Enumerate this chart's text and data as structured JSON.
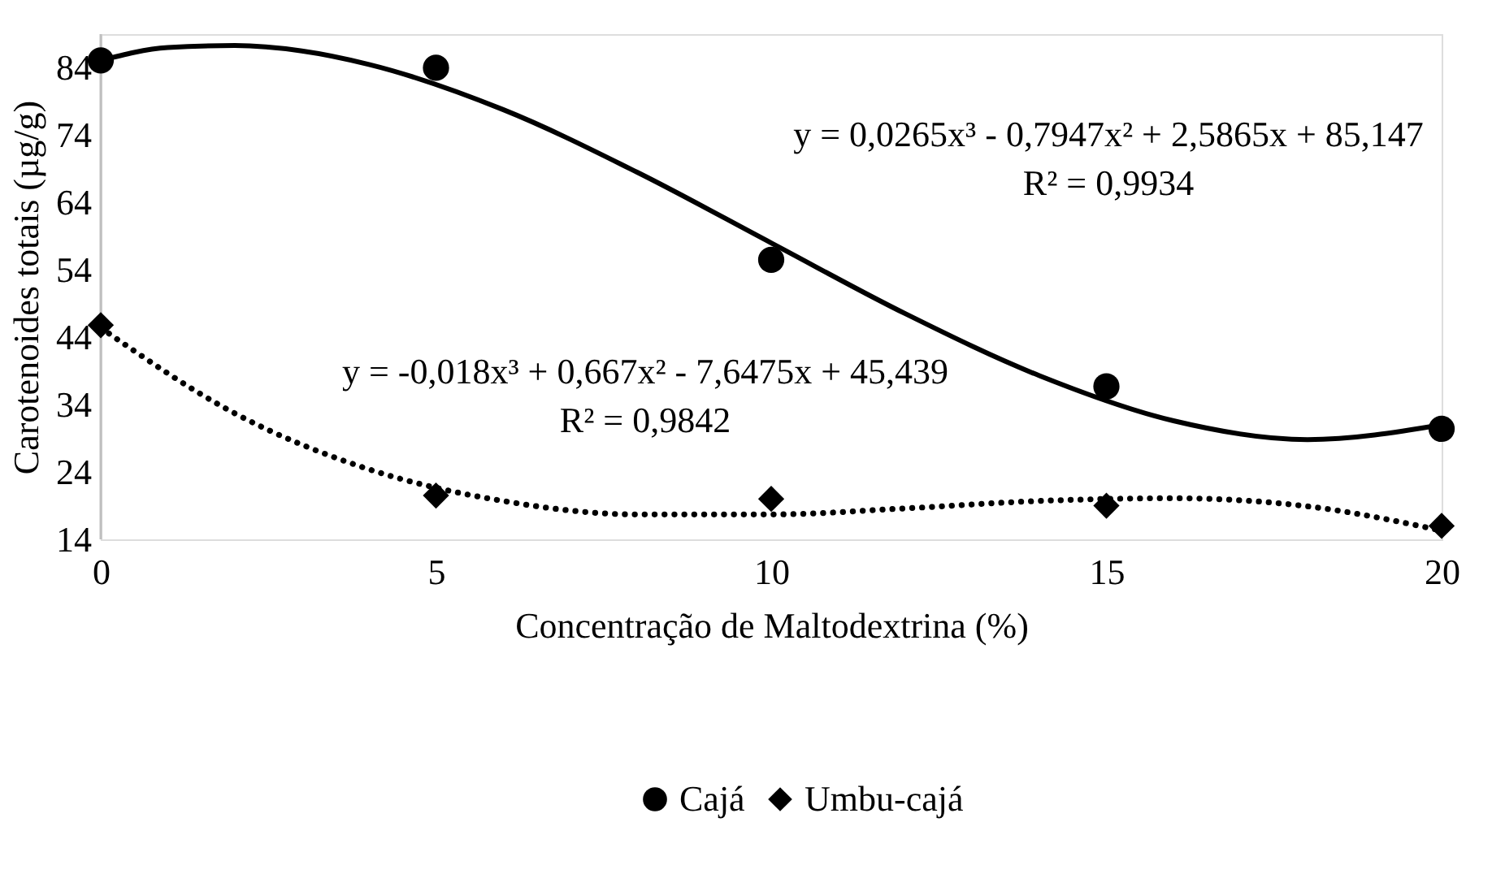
{
  "chart_data": {
    "type": "scatter",
    "xlabel": "Concentração de Maltodextrina (%)",
    "ylabel": "Carotenoides totais (µg/g)",
    "x": [
      0,
      5,
      10,
      15,
      20
    ],
    "series": [
      {
        "name": "Cajá",
        "color": "#000000",
        "marker": "circle",
        "values": [
          85.1,
          84,
          55.5,
          36.7,
          30.4
        ]
      },
      {
        "name": "Umbu-cajá",
        "color": "#000000",
        "marker": "diamond",
        "values": [
          45.8,
          20.5,
          20,
          19,
          16
        ]
      },
      {
        "type": "line",
        "color": "#000000",
        "line_style": "solid",
        "marker": "none",
        "x": [
          0,
          1,
          2,
          3,
          4,
          6,
          8,
          10,
          12,
          14,
          16,
          18,
          20
        ],
        "values": [
          85.1,
          87.0,
          87.3,
          86.5,
          84.5,
          77.8,
          68.5,
          58.0,
          47.5,
          38.3,
          31.6,
          28.8,
          31.0
        ]
      },
      {
        "type": "line",
        "color": "#000000",
        "line_style": "dotted",
        "marker": "none",
        "x": [
          0,
          2,
          4,
          6,
          8,
          10,
          12,
          14,
          16,
          18,
          20
        ],
        "values": [
          45.4,
          32.7,
          24.4,
          19.7,
          17.7,
          17.7,
          18.6,
          19.7,
          20.1,
          18.9,
          15.3
        ]
      }
    ],
    "annotations": [
      "y = 0,0265x³ - 0,7947x² + 2,5865x + 85,147",
      "R² = 0,9934",
      "y = -0,018x³ + 0,667x² - 7,6475x + 45,439",
      "R² = 0,9842"
    ],
    "xlim": [
      0,
      20
    ],
    "xticks": [
      0,
      5,
      10,
      15,
      20
    ],
    "ylim": [
      14,
      89
    ],
    "yticks": [
      14,
      24,
      34,
      44,
      54,
      64,
      74,
      84
    ],
    "grid": false,
    "legend": "bottom"
  }
}
